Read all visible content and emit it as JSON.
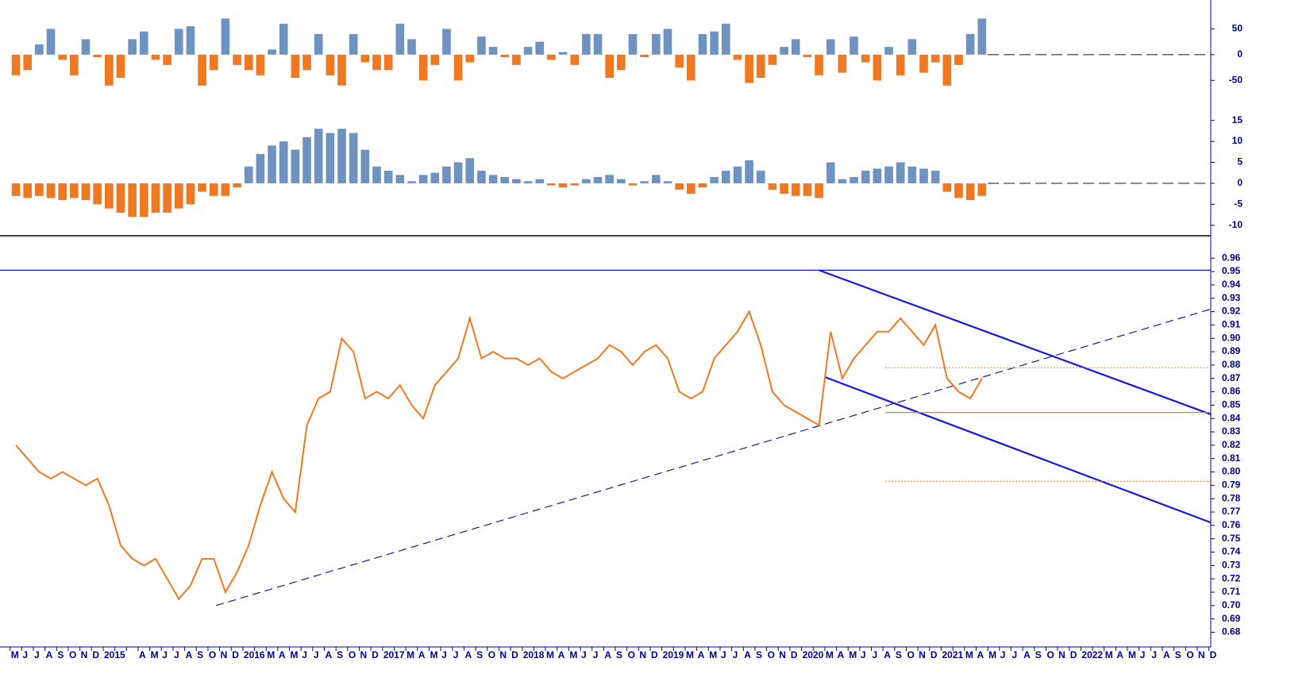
{
  "chart_data": [
    {
      "type": "bar",
      "color": "#6f93c0",
      "negative_color": "#f07820",
      "ylim": [
        -125,
        106
      ],
      "yticks": [
        50,
        0,
        -50
      ],
      "values": [
        -40,
        -30,
        20,
        50,
        -10,
        -40,
        30,
        -5,
        -60,
        -45,
        30,
        45,
        -10,
        -20,
        50,
        55,
        -60,
        -30,
        70,
        -20,
        -30,
        -40,
        10,
        60,
        -45,
        -30,
        40,
        -40,
        -60,
        40,
        -15,
        -30,
        -30,
        60,
        30,
        -50,
        -20,
        50,
        -50,
        -15,
        35,
        15,
        -5,
        -20,
        15,
        25,
        -10,
        5,
        -20,
        40,
        40,
        -45,
        -30,
        40,
        -5,
        40,
        50,
        -25,
        -50,
        40,
        45,
        60,
        -10,
        -55,
        -45,
        -20,
        15,
        30,
        -5,
        -40,
        30,
        -35,
        35,
        -15,
        -50,
        15,
        -40,
        30,
        -35,
        -15,
        -60,
        -20,
        40,
        70,
        null,
        null,
        null,
        null,
        null,
        null,
        null,
        null,
        null,
        null,
        null,
        null,
        null,
        null,
        null,
        null,
        null,
        null,
        null,
        null
      ]
    },
    {
      "type": "bar",
      "color": "#6f93c0",
      "negative_color": "#f07820",
      "ylim": [
        -12.5,
        17.2
      ],
      "yticks": [
        15,
        10,
        5,
        0,
        -5,
        -10
      ],
      "values": [
        -3,
        -3.5,
        -3,
        -3.5,
        -4,
        -3.5,
        -4,
        -5,
        -6,
        -7,
        -8,
        -8,
        -7,
        -7,
        -6,
        -5,
        -2,
        -3,
        -3,
        -1,
        4,
        7,
        9,
        10,
        8,
        11,
        13,
        12,
        13,
        12,
        8,
        4,
        3,
        2,
        0.5,
        2,
        2.5,
        4,
        5,
        6,
        3,
        2,
        1.5,
        1,
        0.5,
        1,
        -0.5,
        -1,
        -0.5,
        1,
        1.5,
        2,
        1,
        -0.5,
        0.5,
        2,
        0.5,
        -1.5,
        -2.5,
        -1,
        1.5,
        3,
        4,
        5.5,
        3,
        -1.5,
        -2.5,
        -3,
        -3,
        -3.5,
        5,
        1,
        1.5,
        3,
        3.5,
        4,
        5,
        4,
        3.5,
        3,
        -2,
        -3.5,
        -4,
        -3,
        null,
        null,
        null,
        null,
        null,
        null,
        null,
        null,
        null,
        null,
        null,
        null,
        null,
        null,
        null,
        null,
        null,
        null,
        null,
        null
      ]
    },
    {
      "type": "line",
      "color": "#f07820",
      "ylim": [
        0.669,
        0.975
      ],
      "yticks": [
        0.68,
        0.69,
        {
          "value": 0.7,
          "label": "0.70"
        },
        0.71,
        0.72,
        0.73,
        0.74,
        0.75,
        0.76,
        0.77,
        0.78,
        0.79,
        {
          "value": 0.8,
          "label": "0.80"
        },
        0.81,
        0.82,
        0.83,
        0.84,
        0.85,
        0.86,
        0.87,
        0.88,
        0.89,
        {
          "value": 0.9,
          "label": "0.90"
        },
        0.91,
        0.92,
        0.93,
        0.94,
        0.95,
        0.96
      ],
      "categories": [
        "M",
        "J",
        "J",
        "A",
        "S",
        "O",
        "N",
        "D",
        "2015",
        null,
        null,
        "A",
        "M",
        "J",
        "J",
        "A",
        "S",
        "O",
        "N",
        "D",
        "2016",
        null,
        "M",
        "A",
        "M",
        "J",
        "J",
        "A",
        "S",
        "O",
        "N",
        "D",
        "2017",
        null,
        "M",
        "A",
        "M",
        "J",
        "J",
        "A",
        "S",
        "O",
        "N",
        "D",
        "2018",
        null,
        "M",
        "A",
        "M",
        "J",
        "J",
        "A",
        "S",
        "O",
        "N",
        "D",
        "2019",
        null,
        "M",
        "A",
        "M",
        "J",
        "J",
        "A",
        "S",
        "O",
        "N",
        "D",
        "2020",
        null,
        "M",
        "A",
        "M",
        "J",
        "J",
        "A",
        "S",
        "O",
        "N",
        "D",
        "2021",
        null,
        "M",
        "A",
        "M",
        "J",
        "J",
        "A",
        "S",
        "O",
        "N",
        "D",
        "2022",
        null,
        "M",
        "A",
        "M",
        "J",
        "J",
        "A",
        "S",
        "O",
        "N",
        "D"
      ],
      "values": [
        0.82,
        0.81,
        0.8,
        0.795,
        0.8,
        0.795,
        0.79,
        0.795,
        0.775,
        0.745,
        0.735,
        0.73,
        0.735,
        0.72,
        0.705,
        0.715,
        0.735,
        0.735,
        0.71,
        0.725,
        0.745,
        0.775,
        0.8,
        0.78,
        0.77,
        0.835,
        0.855,
        0.86,
        0.9,
        0.89,
        0.855,
        0.86,
        0.855,
        0.865,
        0.85,
        0.84,
        0.865,
        0.875,
        0.885,
        0.915,
        0.885,
        0.89,
        0.885,
        0.885,
        0.88,
        0.885,
        0.875,
        0.87,
        0.875,
        0.88,
        0.885,
        0.895,
        0.89,
        0.88,
        0.89,
        0.895,
        0.885,
        0.86,
        0.855,
        0.86,
        0.885,
        0.895,
        0.905,
        0.92,
        0.895,
        0.86,
        0.85,
        0.845,
        0.84,
        0.835,
        0.905,
        0.87,
        0.885,
        0.895,
        0.905,
        0.905,
        0.915,
        0.905,
        0.895,
        0.91,
        0.87,
        0.86,
        0.855,
        0.87,
        null,
        null,
        null,
        null,
        null,
        null,
        null,
        null,
        null,
        null,
        null,
        null,
        null,
        null,
        null,
        null,
        null,
        null,
        null,
        null
      ],
      "lines": [
        {
          "from": [
            17.7,
            0.7
          ],
          "to": [
            103.2,
            0.922
          ],
          "color": "#1a1a8c",
          "style": "dashed"
        },
        {
          "from": [
            69.5,
            0.951
          ],
          "to": [
            103.2,
            0.843
          ],
          "color": "#1414e6",
          "style": "solid"
        },
        {
          "from": [
            70.0,
            0.871
          ],
          "to": [
            103.2,
            0.762
          ],
          "color": "#1414e6",
          "style": "solid"
        },
        {
          "from": [
            -0.9,
            0.951
          ],
          "to": [
            103.2,
            0.951
          ],
          "color": "#1414e6",
          "style": "thin"
        },
        {
          "from": [
            75.2,
            0.8445
          ],
          "to": [
            103.2,
            0.8445
          ],
          "color": "#f07820",
          "style": "thin"
        },
        {
          "from": [
            75.2,
            0.878
          ],
          "to": [
            103.2,
            0.878
          ],
          "color": "#f07820",
          "style": "dotted"
        },
        {
          "from": [
            75.2,
            0.793
          ],
          "to": [
            103.2,
            0.793
          ],
          "color": "#f07820",
          "style": "dotted"
        }
      ]
    }
  ]
}
